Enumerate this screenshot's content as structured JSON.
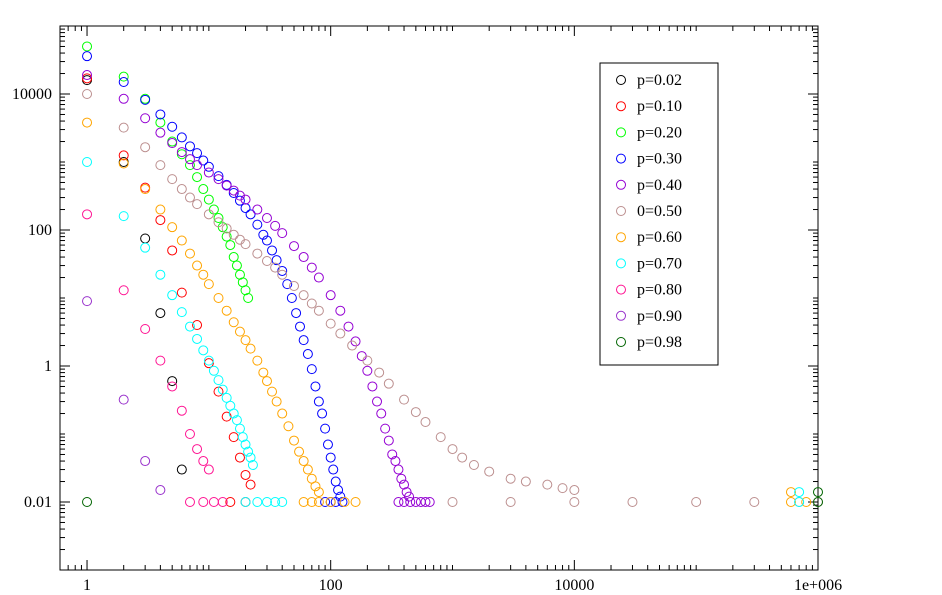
{
  "chart_data": {
    "type": "scatter",
    "title": "",
    "xlabel": "",
    "ylabel": "",
    "xscale": "log",
    "yscale": "log",
    "xlim": [
      0.6,
      1000000
    ],
    "ylim": [
      0.001,
      100000
    ],
    "grid": false,
    "legend_position": "top-right",
    "marker": "open-circle",
    "x_ticks": [
      {
        "value": 1,
        "label": "1"
      },
      {
        "value": 100,
        "label": "100"
      },
      {
        "value": 10000,
        "label": "10000"
      },
      {
        "value": 1000000,
        "label": "1e+006"
      }
    ],
    "y_ticks": [
      {
        "value": 0.01,
        "label": "0.01"
      },
      {
        "value": 1,
        "label": "1"
      },
      {
        "value": 100,
        "label": "100"
      },
      {
        "value": 10000,
        "label": "10000"
      }
    ],
    "series": [
      {
        "name": "p=0.02",
        "color": "#000000",
        "points": [
          [
            1,
            16000
          ],
          [
            2,
            1000
          ],
          [
            3,
            75
          ],
          [
            4,
            6
          ],
          [
            5,
            0.6
          ],
          [
            6,
            0.03
          ]
        ]
      },
      {
        "name": "p=0.10",
        "color": "#ff0000",
        "points": [
          [
            1,
            17000
          ],
          [
            2,
            1250
          ],
          [
            3,
            420
          ],
          [
            4,
            140
          ],
          [
            5,
            50
          ],
          [
            6,
            12
          ],
          [
            8,
            4
          ],
          [
            10,
            1.1
          ],
          [
            12,
            0.42
          ],
          [
            14,
            0.18
          ],
          [
            16,
            0.09
          ],
          [
            18,
            0.045
          ],
          [
            20,
            0.025
          ],
          [
            22,
            0.018
          ],
          [
            15,
            0.01
          ],
          [
            20,
            0.01
          ]
        ]
      },
      {
        "name": "p=0.20",
        "color": "#00ff00",
        "points": [
          [
            1,
            50000
          ],
          [
            2,
            18000
          ],
          [
            3,
            8500
          ],
          [
            4,
            3800
          ],
          [
            5,
            2000
          ],
          [
            6,
            1300
          ],
          [
            7,
            900
          ],
          [
            8,
            600
          ],
          [
            9,
            400
          ],
          [
            10,
            280
          ],
          [
            11,
            200
          ],
          [
            12,
            150
          ],
          [
            13,
            110
          ],
          [
            14,
            80
          ],
          [
            15,
            60
          ],
          [
            16,
            40
          ],
          [
            17,
            30
          ],
          [
            18,
            22
          ],
          [
            19,
            17
          ],
          [
            20,
            13
          ],
          [
            21,
            10
          ]
        ]
      },
      {
        "name": "p=0.30",
        "color": "#0000ff",
        "points": [
          [
            1,
            36000
          ],
          [
            2,
            15000
          ],
          [
            3,
            8200
          ],
          [
            4,
            5000
          ],
          [
            5,
            3300
          ],
          [
            6,
            2300
          ],
          [
            7,
            1700
          ],
          [
            8,
            1350
          ],
          [
            9,
            1050
          ],
          [
            10,
            850
          ],
          [
            12,
            620
          ],
          [
            14,
            460
          ],
          [
            16,
            350
          ],
          [
            18,
            270
          ],
          [
            20,
            210
          ],
          [
            22,
            170
          ],
          [
            25,
            120
          ],
          [
            28,
            85
          ],
          [
            30,
            70
          ],
          [
            33,
            50
          ],
          [
            36,
            36
          ],
          [
            40,
            25
          ],
          [
            44,
            16
          ],
          [
            48,
            10
          ],
          [
            52,
            6
          ],
          [
            56,
            3.8
          ],
          [
            60,
            2.4
          ],
          [
            65,
            1.5
          ],
          [
            70,
            0.9
          ],
          [
            75,
            0.5
          ],
          [
            80,
            0.3
          ],
          [
            85,
            0.2
          ],
          [
            90,
            0.12
          ],
          [
            95,
            0.07
          ],
          [
            100,
            0.045
          ],
          [
            105,
            0.03
          ],
          [
            110,
            0.02
          ],
          [
            115,
            0.015
          ],
          [
            120,
            0.012
          ],
          [
            90,
            0.01
          ],
          [
            100,
            0.01
          ],
          [
            110,
            0.01
          ],
          [
            125,
            0.01
          ]
        ]
      },
      {
        "name": "p=0.40",
        "color": "#9400d3",
        "points": [
          [
            1,
            19000
          ],
          [
            2,
            8500
          ],
          [
            3,
            4400
          ],
          [
            4,
            2700
          ],
          [
            5,
            1900
          ],
          [
            6,
            1400
          ],
          [
            7,
            1100
          ],
          [
            8,
            900
          ],
          [
            10,
            700
          ],
          [
            12,
            560
          ],
          [
            14,
            450
          ],
          [
            16,
            380
          ],
          [
            18,
            320
          ],
          [
            20,
            280
          ],
          [
            25,
            200
          ],
          [
            30,
            150
          ],
          [
            35,
            115
          ],
          [
            40,
            90
          ],
          [
            50,
            58
          ],
          [
            60,
            40
          ],
          [
            70,
            28
          ],
          [
            80,
            20
          ],
          [
            100,
            11
          ],
          [
            120,
            6.5
          ],
          [
            140,
            3.8
          ],
          [
            160,
            2.3
          ],
          [
            180,
            1.4
          ],
          [
            200,
            0.85
          ],
          [
            220,
            0.5
          ],
          [
            240,
            0.3
          ],
          [
            260,
            0.2
          ],
          [
            280,
            0.12
          ],
          [
            300,
            0.08
          ],
          [
            320,
            0.05
          ],
          [
            340,
            0.04
          ],
          [
            360,
            0.03
          ],
          [
            380,
            0.022
          ],
          [
            400,
            0.018
          ],
          [
            420,
            0.014
          ],
          [
            440,
            0.012
          ],
          [
            360,
            0.01
          ],
          [
            400,
            0.01
          ],
          [
            450,
            0.01
          ],
          [
            500,
            0.01
          ],
          [
            550,
            0.01
          ],
          [
            600,
            0.01
          ],
          [
            650,
            0.01
          ]
        ]
      },
      {
        "name": "0=0.50",
        "color": "#bc8f8f",
        "points": [
          [
            1,
            10000
          ],
          [
            2,
            3200
          ],
          [
            3,
            1650
          ],
          [
            4,
            900
          ],
          [
            5,
            560
          ],
          [
            6,
            400
          ],
          [
            7,
            300
          ],
          [
            8,
            240
          ],
          [
            10,
            170
          ],
          [
            12,
            130
          ],
          [
            14,
            105
          ],
          [
            16,
            85
          ],
          [
            18,
            72
          ],
          [
            20,
            62
          ],
          [
            25,
            45
          ],
          [
            30,
            35
          ],
          [
            35,
            28
          ],
          [
            40,
            22
          ],
          [
            50,
            15
          ],
          [
            60,
            11
          ],
          [
            70,
            8.3
          ],
          [
            80,
            6.5
          ],
          [
            100,
            4.2
          ],
          [
            120,
            3
          ],
          [
            150,
            2
          ],
          [
            200,
            1.2
          ],
          [
            250,
            0.8
          ],
          [
            300,
            0.55
          ],
          [
            400,
            0.32
          ],
          [
            500,
            0.21
          ],
          [
            600,
            0.15
          ],
          [
            800,
            0.09
          ],
          [
            1000,
            0.06
          ],
          [
            1200,
            0.045
          ],
          [
            1500,
            0.035
          ],
          [
            2000,
            0.028
          ],
          [
            3000,
            0.022
          ],
          [
            4000,
            0.02
          ],
          [
            6000,
            0.018
          ],
          [
            8000,
            0.016
          ],
          [
            10000,
            0.015
          ],
          [
            1000,
            0.01
          ],
          [
            3000,
            0.01
          ],
          [
            10000,
            0.01
          ],
          [
            30000,
            0.01
          ],
          [
            100000,
            0.01
          ],
          [
            300000,
            0.01
          ],
          [
            700000,
            0.01
          ],
          [
            1000000,
            0.01
          ]
        ]
      },
      {
        "name": "p=0.60",
        "color": "#ffa500",
        "points": [
          [
            1,
            3800
          ],
          [
            2,
            950
          ],
          [
            3,
            400
          ],
          [
            4,
            200
          ],
          [
            5,
            110
          ],
          [
            6,
            70
          ],
          [
            7,
            45
          ],
          [
            8,
            30
          ],
          [
            9,
            22
          ],
          [
            10,
            16
          ],
          [
            12,
            10
          ],
          [
            14,
            6.5
          ],
          [
            16,
            4.4
          ],
          [
            18,
            3.2
          ],
          [
            20,
            2.4
          ],
          [
            22,
            1.8
          ],
          [
            25,
            1.2
          ],
          [
            28,
            0.8
          ],
          [
            30,
            0.6
          ],
          [
            33,
            0.42
          ],
          [
            36,
            0.3
          ],
          [
            40,
            0.2
          ],
          [
            45,
            0.13
          ],
          [
            50,
            0.08
          ],
          [
            55,
            0.055
          ],
          [
            60,
            0.04
          ],
          [
            65,
            0.03
          ],
          [
            70,
            0.022
          ],
          [
            75,
            0.017
          ],
          [
            80,
            0.014
          ],
          [
            60,
            0.01
          ],
          [
            70,
            0.01
          ],
          [
            80,
            0.01
          ],
          [
            100,
            0.01
          ],
          [
            130,
            0.01
          ],
          [
            160,
            0.01
          ],
          [
            600000,
            0.014
          ],
          [
            600000,
            0.01
          ],
          [
            800000,
            0.01
          ]
        ]
      },
      {
        "name": "p=0.70",
        "color": "#00ffff",
        "points": [
          [
            1,
            1000
          ],
          [
            2,
            160
          ],
          [
            3,
            55
          ],
          [
            4,
            22
          ],
          [
            5,
            11
          ],
          [
            6,
            6.2
          ],
          [
            7,
            3.8
          ],
          [
            8,
            2.5
          ],
          [
            9,
            1.7
          ],
          [
            10,
            1.2
          ],
          [
            11,
            0.85
          ],
          [
            12,
            0.62
          ],
          [
            13,
            0.45
          ],
          [
            14,
            0.34
          ],
          [
            15,
            0.26
          ],
          [
            16,
            0.2
          ],
          [
            17,
            0.16
          ],
          [
            18,
            0.12
          ],
          [
            19,
            0.09
          ],
          [
            20,
            0.07
          ],
          [
            21,
            0.055
          ],
          [
            22,
            0.045
          ],
          [
            23,
            0.035
          ],
          [
            20,
            0.01
          ],
          [
            25,
            0.01
          ],
          [
            30,
            0.01
          ],
          [
            35,
            0.01
          ],
          [
            40,
            0.01
          ],
          [
            700000,
            0.014
          ],
          [
            700000,
            0.01
          ]
        ]
      },
      {
        "name": "p=0.80",
        "color": "#ff1493",
        "points": [
          [
            1,
            170
          ],
          [
            2,
            13
          ],
          [
            3,
            3.5
          ],
          [
            4,
            1.2
          ],
          [
            5,
            0.5
          ],
          [
            6,
            0.22
          ],
          [
            7,
            0.1
          ],
          [
            8,
            0.06
          ],
          [
            9,
            0.04
          ],
          [
            10,
            0.03
          ],
          [
            7,
            0.01
          ],
          [
            9,
            0.01
          ],
          [
            11,
            0.01
          ],
          [
            13,
            0.01
          ]
        ]
      },
      {
        "name": "p=0.90",
        "color": "#9932cc",
        "points": [
          [
            1,
            9
          ],
          [
            2,
            0.32
          ],
          [
            3,
            0.04
          ],
          [
            4,
            0.015
          ]
        ]
      },
      {
        "name": "p=0.98",
        "color": "#006400",
        "points": [
          [
            1,
            0.01
          ],
          [
            1000000,
            0.014
          ],
          [
            1000000,
            0.01
          ]
        ]
      }
    ]
  }
}
